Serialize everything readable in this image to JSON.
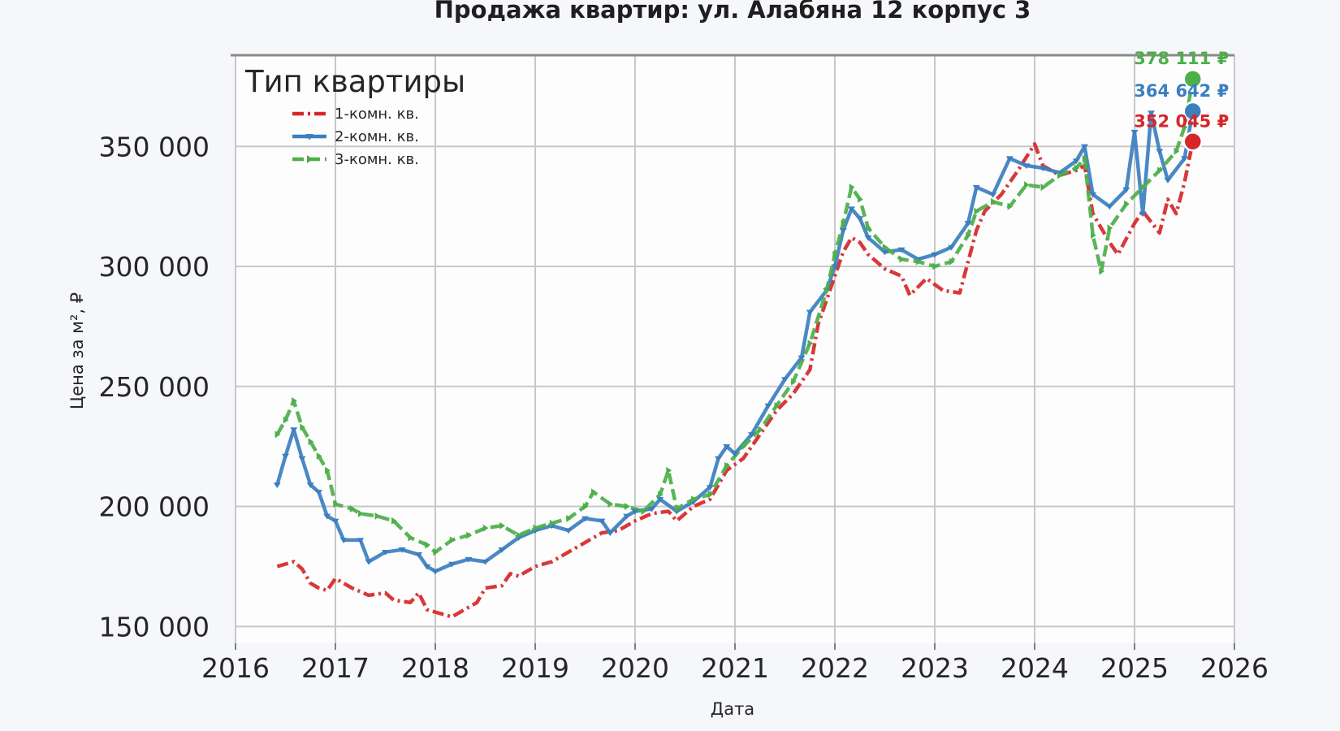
{
  "chart_data": {
    "type": "line",
    "title": "Продажа квартир: ул. Алабяна 12 корпус 3",
    "xlabel": "Дата",
    "ylabel": "Цена за м², ₽",
    "xlim": [
      "2016-01-01",
      "2026-01-01"
    ],
    "ylim": [
      143000,
      388000
    ],
    "x_ticks": [
      "2016",
      "2017",
      "2018",
      "2019",
      "2020",
      "2021",
      "2022",
      "2023",
      "2024",
      "2025",
      "2026"
    ],
    "y_ticks": [
      150000,
      200000,
      250000,
      300000,
      350000
    ],
    "y_tick_labels": [
      "150 000",
      "200 000",
      "250 000",
      "300 000",
      "350 000"
    ],
    "grid": true,
    "legend": {
      "title": "Тип квартиры",
      "position": "top-left"
    },
    "series": [
      {
        "name": "1-комн. кв.",
        "color": "#d62728",
        "style": "dash-dot",
        "marker": "none",
        "points": [
          [
            "2016-06",
            175000
          ],
          [
            "2016-07",
            176000
          ],
          [
            "2016-08",
            177000
          ],
          [
            "2016-09",
            174000
          ],
          [
            "2016-10",
            168000
          ],
          [
            "2016-11",
            166000
          ],
          [
            "2016-12",
            165000
          ],
          [
            "2017-01",
            170000
          ],
          [
            "2017-03",
            166000
          ],
          [
            "2017-05",
            163000
          ],
          [
            "2017-07",
            164000
          ],
          [
            "2017-08",
            161000
          ],
          [
            "2017-10",
            160000
          ],
          [
            "2017-11",
            164000
          ],
          [
            "2017-12",
            157000
          ],
          [
            "2018-01",
            156000
          ],
          [
            "2018-02",
            155000
          ],
          [
            "2018-03",
            154000
          ],
          [
            "2018-05",
            158000
          ],
          [
            "2018-06",
            160000
          ],
          [
            "2018-07",
            166000
          ],
          [
            "2018-09",
            167000
          ],
          [
            "2018-10",
            172000
          ],
          [
            "2018-11",
            171000
          ],
          [
            "2019-01",
            175000
          ],
          [
            "2019-03",
            177000
          ],
          [
            "2019-05",
            181000
          ],
          [
            "2019-07",
            185000
          ],
          [
            "2019-09",
            189000
          ],
          [
            "2019-11",
            190000
          ],
          [
            "2020-01",
            194000
          ],
          [
            "2020-03",
            197000
          ],
          [
            "2020-05",
            198000
          ],
          [
            "2020-06",
            194000
          ],
          [
            "2020-08",
            200000
          ],
          [
            "2020-10",
            203000
          ],
          [
            "2020-12",
            215000
          ],
          [
            "2021-02",
            220000
          ],
          [
            "2021-04",
            230000
          ],
          [
            "2021-06",
            240000
          ],
          [
            "2021-08",
            247000
          ],
          [
            "2021-10",
            257000
          ],
          [
            "2021-11",
            276000
          ],
          [
            "2021-12",
            286000
          ],
          [
            "2022-02",
            306000
          ],
          [
            "2022-03",
            312000
          ],
          [
            "2022-04",
            310000
          ],
          [
            "2022-05",
            305000
          ],
          [
            "2022-07",
            299000
          ],
          [
            "2022-09",
            296000
          ],
          [
            "2022-10",
            288000
          ],
          [
            "2022-12",
            295000
          ],
          [
            "2023-02",
            290000
          ],
          [
            "2023-04",
            289000
          ],
          [
            "2023-06",
            315000
          ],
          [
            "2023-07",
            323000
          ],
          [
            "2023-09",
            330000
          ],
          [
            "2023-11",
            340000
          ],
          [
            "2024-01",
            351000
          ],
          [
            "2024-02",
            342000
          ],
          [
            "2024-04",
            338000
          ],
          [
            "2024-06",
            340000
          ],
          [
            "2024-07",
            342000
          ],
          [
            "2024-08",
            322000
          ],
          [
            "2024-09",
            316000
          ],
          [
            "2024-10",
            310000
          ],
          [
            "2024-11",
            305000
          ],
          [
            "2025-01",
            318000
          ],
          [
            "2025-02",
            323000
          ],
          [
            "2025-04",
            314000
          ],
          [
            "2025-05",
            328000
          ],
          [
            "2025-06",
            322000
          ],
          [
            "2025-07",
            335000
          ],
          [
            "2025-08",
            352045
          ]
        ]
      },
      {
        "name": "2-комн. кв.",
        "color": "#3b7fbf",
        "style": "solid",
        "marker": "triangle-down",
        "points": [
          [
            "2016-06",
            209000
          ],
          [
            "2016-07",
            221000
          ],
          [
            "2016-08",
            232000
          ],
          [
            "2016-09",
            220000
          ],
          [
            "2016-10",
            209000
          ],
          [
            "2016-11",
            206000
          ],
          [
            "2016-12",
            196000
          ],
          [
            "2017-01",
            194000
          ],
          [
            "2017-02",
            186000
          ],
          [
            "2017-04",
            186000
          ],
          [
            "2017-05",
            177000
          ],
          [
            "2017-07",
            181000
          ],
          [
            "2017-09",
            182000
          ],
          [
            "2017-11",
            180000
          ],
          [
            "2017-12",
            175000
          ],
          [
            "2018-01",
            173000
          ],
          [
            "2018-03",
            176000
          ],
          [
            "2018-05",
            178000
          ],
          [
            "2018-07",
            177000
          ],
          [
            "2018-09",
            182000
          ],
          [
            "2018-11",
            187000
          ],
          [
            "2019-01",
            190000
          ],
          [
            "2019-03",
            192000
          ],
          [
            "2019-05",
            190000
          ],
          [
            "2019-07",
            195000
          ],
          [
            "2019-09",
            194000
          ],
          [
            "2019-10",
            189000
          ],
          [
            "2019-12",
            196000
          ],
          [
            "2020-01",
            198000
          ],
          [
            "2020-03",
            199000
          ],
          [
            "2020-04",
            203000
          ],
          [
            "2020-06",
            198000
          ],
          [
            "2020-08",
            202000
          ],
          [
            "2020-10",
            208000
          ],
          [
            "2020-11",
            220000
          ],
          [
            "2020-12",
            225000
          ],
          [
            "2021-01",
            222000
          ],
          [
            "2021-03",
            230000
          ],
          [
            "2021-05",
            242000
          ],
          [
            "2021-07",
            253000
          ],
          [
            "2021-09",
            262000
          ],
          [
            "2021-10",
            281000
          ],
          [
            "2021-12",
            290000
          ],
          [
            "2022-01",
            300000
          ],
          [
            "2022-02",
            315000
          ],
          [
            "2022-03",
            324000
          ],
          [
            "2022-04",
            320000
          ],
          [
            "2022-05",
            312000
          ],
          [
            "2022-07",
            306000
          ],
          [
            "2022-09",
            307000
          ],
          [
            "2022-11",
            303000
          ],
          [
            "2023-01",
            305000
          ],
          [
            "2023-03",
            308000
          ],
          [
            "2023-05",
            318000
          ],
          [
            "2023-06",
            333000
          ],
          [
            "2023-08",
            330000
          ],
          [
            "2023-10",
            345000
          ],
          [
            "2023-12",
            342000
          ],
          [
            "2024-02",
            341000
          ],
          [
            "2024-04",
            339000
          ],
          [
            "2024-06",
            344000
          ],
          [
            "2024-07",
            350000
          ],
          [
            "2024-08",
            330000
          ],
          [
            "2024-10",
            325000
          ],
          [
            "2024-12",
            332000
          ],
          [
            "2025-01",
            356000
          ],
          [
            "2025-02",
            322000
          ],
          [
            "2025-03",
            364000
          ],
          [
            "2025-04",
            348000
          ],
          [
            "2025-05",
            336000
          ],
          [
            "2025-07",
            345000
          ],
          [
            "2025-08",
            364642
          ]
        ]
      },
      {
        "name": "3-комн. кв.",
        "color": "#4daf4a",
        "style": "dashed",
        "marker": "triangle-right",
        "points": [
          [
            "2016-06",
            230000
          ],
          [
            "2016-07",
            236000
          ],
          [
            "2016-08",
            244000
          ],
          [
            "2016-09",
            233000
          ],
          [
            "2016-10",
            227000
          ],
          [
            "2016-11",
            221000
          ],
          [
            "2016-12",
            215000
          ],
          [
            "2017-01",
            201000
          ],
          [
            "2017-03",
            199000
          ],
          [
            "2017-04",
            197000
          ],
          [
            "2017-06",
            196000
          ],
          [
            "2017-08",
            194000
          ],
          [
            "2017-10",
            187000
          ],
          [
            "2017-12",
            184000
          ],
          [
            "2018-01",
            181000
          ],
          [
            "2018-03",
            186000
          ],
          [
            "2018-05",
            188000
          ],
          [
            "2018-07",
            191000
          ],
          [
            "2018-09",
            192000
          ],
          [
            "2018-11",
            188000
          ],
          [
            "2019-01",
            191000
          ],
          [
            "2019-03",
            193000
          ],
          [
            "2019-05",
            195000
          ],
          [
            "2019-07",
            200000
          ],
          [
            "2019-08",
            206000
          ],
          [
            "2019-10",
            201000
          ],
          [
            "2019-12",
            200000
          ],
          [
            "2020-02",
            198000
          ],
          [
            "2020-04",
            205000
          ],
          [
            "2020-05",
            215000
          ],
          [
            "2020-06",
            199000
          ],
          [
            "2020-08",
            203000
          ],
          [
            "2020-10",
            205000
          ],
          [
            "2020-12",
            217000
          ],
          [
            "2021-02",
            225000
          ],
          [
            "2021-04",
            232000
          ],
          [
            "2021-06",
            242000
          ],
          [
            "2021-08",
            252000
          ],
          [
            "2021-10",
            268000
          ],
          [
            "2021-12",
            290000
          ],
          [
            "2022-01",
            305000
          ],
          [
            "2022-02",
            318000
          ],
          [
            "2022-03",
            333000
          ],
          [
            "2022-04",
            328000
          ],
          [
            "2022-05",
            316000
          ],
          [
            "2022-07",
            308000
          ],
          [
            "2022-09",
            303000
          ],
          [
            "2022-11",
            302000
          ],
          [
            "2023-01",
            300000
          ],
          [
            "2023-03",
            302000
          ],
          [
            "2023-05",
            313000
          ],
          [
            "2023-06",
            323000
          ],
          [
            "2023-08",
            327000
          ],
          [
            "2023-10",
            325000
          ],
          [
            "2023-12",
            334000
          ],
          [
            "2024-02",
            333000
          ],
          [
            "2024-04",
            338000
          ],
          [
            "2024-06",
            341000
          ],
          [
            "2024-07",
            345000
          ],
          [
            "2024-08",
            313000
          ],
          [
            "2024-09",
            298000
          ],
          [
            "2024-10",
            316000
          ],
          [
            "2024-12",
            326000
          ],
          [
            "2025-02",
            333000
          ],
          [
            "2025-04",
            340000
          ],
          [
            "2025-06",
            348000
          ],
          [
            "2025-07",
            358000
          ],
          [
            "2025-08",
            378111
          ]
        ]
      }
    ],
    "end_labels": [
      {
        "series": "3-комн. кв.",
        "date": "2025-08",
        "value": 378111,
        "text": "378 111 ₽",
        "color": "#4daf4a"
      },
      {
        "series": "2-комн. кв.",
        "date": "2025-08",
        "value": 364642,
        "text": "364 642 ₽",
        "color": "#3b7fbf"
      },
      {
        "series": "1-комн. кв.",
        "date": "2025-08",
        "value": 352045,
        "text": "352 045 ₽",
        "color": "#d62728"
      }
    ]
  }
}
